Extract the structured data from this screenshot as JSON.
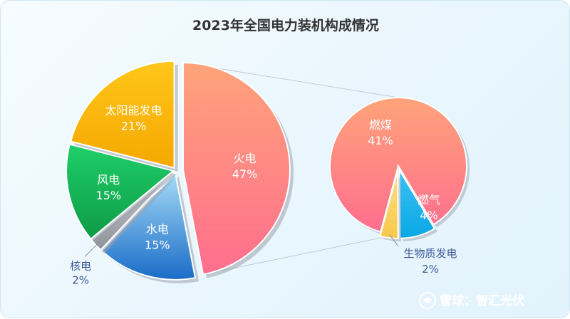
{
  "chart_data": {
    "type": "pie",
    "title": "2023年全国电力装机构成情况",
    "main_pie": {
      "slices": [
        {
          "name": "火电",
          "value": 47,
          "label": "47%",
          "color": "#ff6e8e",
          "color_light": "#ffa37a"
        },
        {
          "name": "水电",
          "value": 15,
          "label": "15%",
          "color": "#1a6cc8",
          "color_light": "#a6dcf7"
        },
        {
          "name": "核电",
          "value": 2,
          "label": "2%",
          "color": "#8f9399",
          "color_light": "#c8cbd0"
        },
        {
          "name": "风电",
          "value": 15,
          "label": "15%",
          "color": "#0e9a45",
          "color_light": "#1fcf6a"
        },
        {
          "name": "太阳能发电",
          "value": 21,
          "label": "21%",
          "color": "#f5a800",
          "color_light": "#ffc61a"
        }
      ]
    },
    "sub_pie": {
      "parent": "火电",
      "slices": [
        {
          "name": "燃煤",
          "value": 41,
          "label": "41%",
          "color": "#ff6e8e",
          "color_light": "#ffa37a"
        },
        {
          "name": "燃气",
          "value": 4,
          "label": "4%",
          "color": "#0aa8e6",
          "color_light": "#3cc0f2"
        },
        {
          "name": "生物质发电",
          "value": 2,
          "label": "2%",
          "color": "#f7c94a",
          "color_light": "#fde08a"
        }
      ]
    }
  },
  "watermark": {
    "text": "雪球：智汇光伏"
  }
}
